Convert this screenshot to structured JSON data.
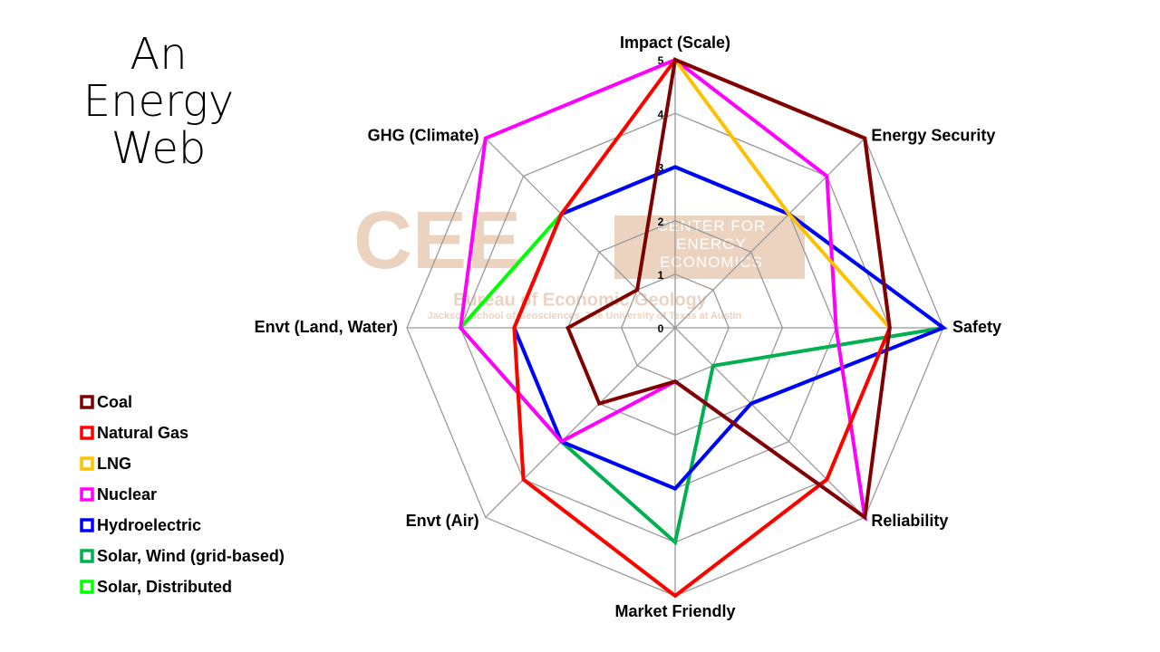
{
  "chart_data": {
    "type": "radar",
    "title": "An Energy Web",
    "categories": [
      "Impact (Scale)",
      "Energy Security",
      "Safety",
      "Reliability",
      "Market Friendly",
      "Envt (Air)",
      "Envt (Land, Water)",
      "GHG (Climate)"
    ],
    "rlim": [
      0,
      5
    ],
    "rticks": [
      0,
      1,
      2,
      3,
      4,
      5
    ],
    "grid": true,
    "legend": "lower-left",
    "watermark": {
      "logo": "CEE",
      "center": "CENTER FOR ENERGY ECONOMICS",
      "bureau": "Bureau of Economic Geology",
      "school": "Jackson School of Geosciences, The University of Texas at Austin"
    },
    "series": [
      {
        "name": "Coal",
        "color": "#7f0000",
        "values": [
          5,
          5,
          4,
          5,
          1,
          2,
          2,
          1
        ]
      },
      {
        "name": "Natural Gas",
        "color": "#ff0000",
        "values": [
          5,
          5,
          4,
          4,
          5,
          4,
          3,
          3
        ]
      },
      {
        "name": "LNG",
        "color": "#ffc000",
        "values": [
          5,
          3,
          4,
          4,
          5,
          4,
          3,
          3
        ]
      },
      {
        "name": "Nuclear",
        "color": "#ff00ff",
        "values": [
          5,
          4,
          3,
          5,
          1,
          3,
          4,
          5
        ]
      },
      {
        "name": "Hydroelectric",
        "color": "#0000ff",
        "values": [
          3,
          3,
          5,
          2,
          3,
          3,
          3,
          3
        ]
      },
      {
        "name": "Solar, Wind (grid-based)",
        "color": "#00b050",
        "values": [
          3,
          3,
          5,
          1,
          4,
          3,
          3,
          3
        ]
      },
      {
        "name": "Solar, Distributed",
        "color": "#00ff00",
        "values": [
          3,
          3,
          5,
          2,
          3,
          3,
          4,
          3
        ]
      }
    ]
  }
}
